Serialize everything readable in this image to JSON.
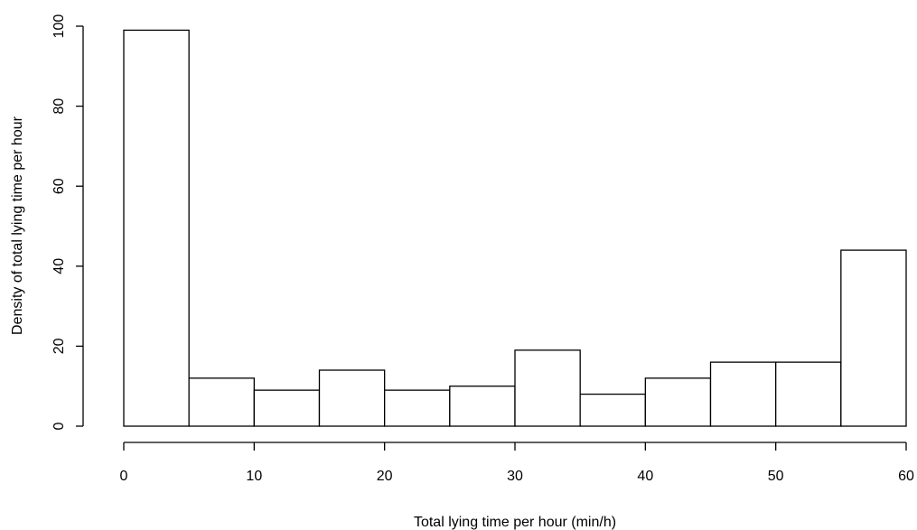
{
  "chart_data": {
    "type": "bar",
    "title": "",
    "xlabel": "Total lying time per hour (min/h)",
    "ylabel": "Density of total lying time per hour",
    "bin_edges": [
      0,
      5,
      10,
      15,
      20,
      25,
      30,
      35,
      40,
      45,
      50,
      55,
      60
    ],
    "values": [
      99,
      12,
      9,
      14,
      9,
      10,
      19,
      8,
      12,
      16,
      16,
      44
    ],
    "xlim": [
      0,
      60
    ],
    "ylim": [
      0,
      100
    ],
    "x_ticks": [
      0,
      10,
      20,
      30,
      40,
      50,
      60
    ],
    "y_ticks": [
      0,
      20,
      40,
      60,
      80,
      100
    ],
    "x_tick_labels": [
      "0",
      "10",
      "20",
      "30",
      "40",
      "50",
      "60"
    ],
    "y_tick_labels": [
      "0",
      "20",
      "40",
      "60",
      "80",
      "100"
    ],
    "grid": false,
    "legend": "none",
    "bar_fill": "#ffffff",
    "bar_stroke": "#000000"
  }
}
